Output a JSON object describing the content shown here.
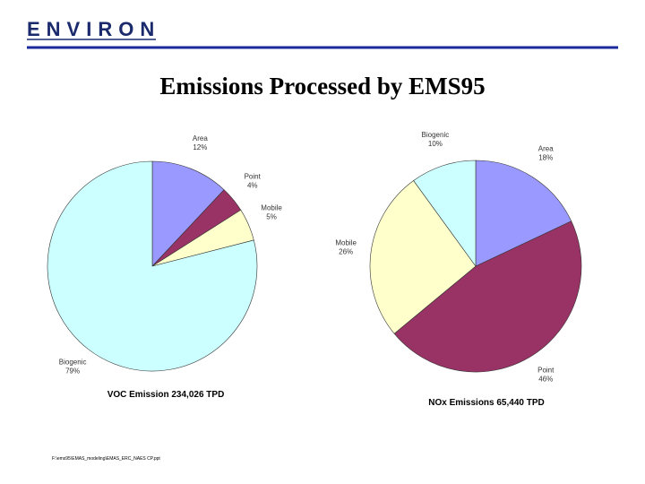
{
  "logo": "ENVIRON",
  "title": "Emissions Processed by EMS95",
  "footer": "F:\\ems95\\EMAS_modeling\\EMAS_ERC_NAES CP.ppt",
  "chart_data": [
    {
      "type": "pie",
      "title": "VOC Emission 234,026 TPD",
      "categories": [
        "Area",
        "Point",
        "Mobile",
        "Biogenic"
      ],
      "values": [
        12,
        4,
        5,
        79
      ],
      "value_labels": [
        "12%",
        "4%",
        "5%",
        "79%"
      ],
      "colors": [
        "#9999ff",
        "#993366",
        "#ffffcc",
        "#ccffff"
      ]
    },
    {
      "type": "pie",
      "title": "NOx Emissions 65,440 TPD",
      "categories": [
        "Area",
        "Point",
        "Mobile",
        "Biogenic"
      ],
      "values": [
        18,
        46,
        26,
        10
      ],
      "value_labels": [
        "18%",
        "46%",
        "26%",
        "10%"
      ],
      "colors": [
        "#9999ff",
        "#993366",
        "#ffffcc",
        "#ccffff"
      ]
    }
  ]
}
